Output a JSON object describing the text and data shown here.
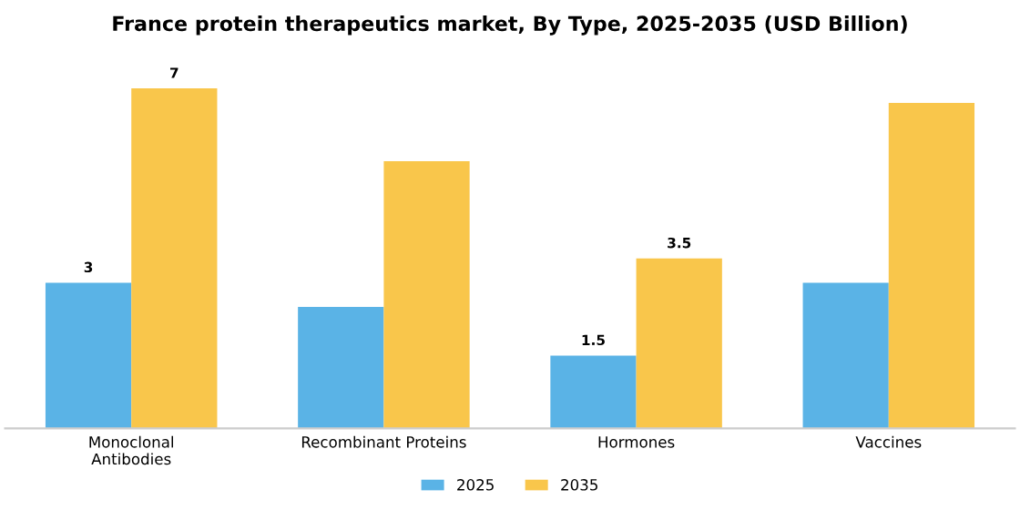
{
  "chart_data": {
    "type": "bar",
    "title": "France protein therapeutics market, By Type, 2025-2035 (USD Billion)",
    "categories": [
      "Monoclonal\nAntibodies",
      "Recombinant Proteins",
      "Hormones",
      "Vaccines"
    ],
    "series": [
      {
        "name": "2025",
        "color": "#5ab3e6",
        "values": [
          3,
          2.5,
          1.5,
          3
        ],
        "value_labels": [
          "3",
          null,
          "1.5",
          null
        ]
      },
      {
        "name": "2035",
        "color": "#f9c64b",
        "values": [
          7,
          5.5,
          3.5,
          6.7
        ],
        "value_labels": [
          "7",
          null,
          "3.5",
          null
        ]
      }
    ],
    "legend": "bottom"
  }
}
